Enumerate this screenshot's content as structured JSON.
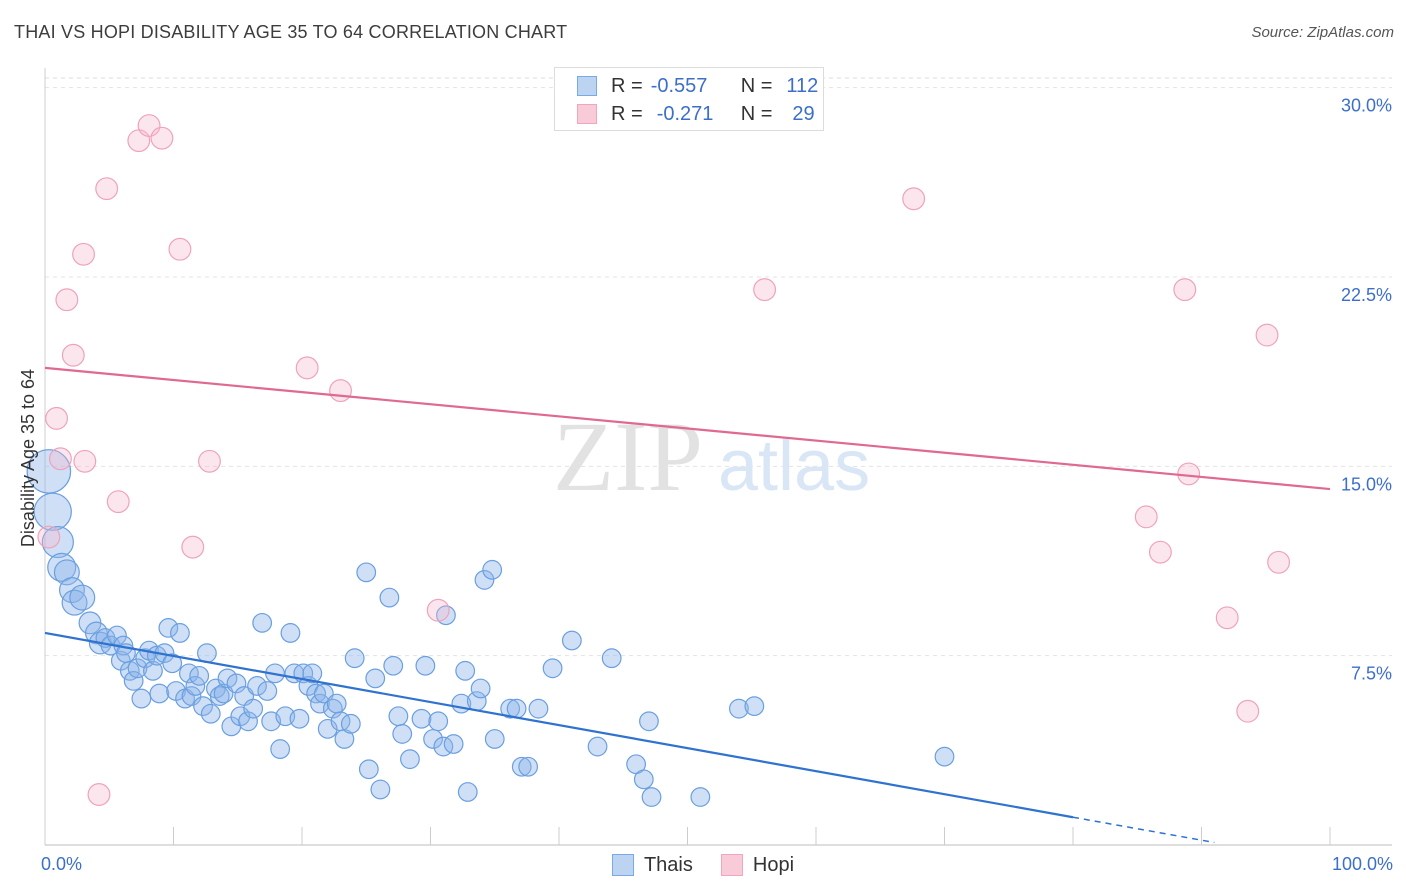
{
  "title": "THAI VS HOPI DISABILITY AGE 35 TO 64 CORRELATION CHART",
  "source": "Source: ZipAtlas.com",
  "watermark": {
    "zip": "ZIP",
    "atlas": "atlas"
  },
  "colors": {
    "thais": "#7aaae6",
    "thais_line": "#2f72cf",
    "hopi": "#f2a6bd",
    "hopi_line": "#e06990",
    "tick": "#3c6fc9"
  },
  "stats": [
    {
      "r_label": "R =",
      "r": "-0.557",
      "n_label": "N =",
      "n": "112"
    },
    {
      "r_label": "R =",
      "r": "-0.271",
      "n_label": "N =",
      "n": "29"
    }
  ],
  "chart_data": {
    "type": "scatter",
    "title": "THAI VS HOPI DISABILITY AGE 35 TO 64 CORRELATION CHART",
    "xlabel": "",
    "ylabel": "Disability Age 35 to 64",
    "xlim": [
      0,
      100
    ],
    "ylim": [
      0,
      30.7
    ],
    "x_tick_labels": [
      "0.0%",
      "100.0%"
    ],
    "y_ticks": [
      7.5,
      15.0,
      22.5,
      30.0
    ],
    "y_tick_labels": [
      "7.5%",
      "15.0%",
      "22.5%",
      "30.0%"
    ],
    "legend": [
      "Thais",
      "Hopi"
    ],
    "series": [
      {
        "name": "Thais",
        "trend": {
          "x0": 0,
          "y0": 8.4,
          "x1": 80,
          "y1": 1.1,
          "dash_to_x": 91,
          "dash_to_y": 0.1
        },
        "points": [
          [
            0.3,
            14.8,
            14
          ],
          [
            0.6,
            13.2,
            12
          ],
          [
            1.0,
            12.0,
            10
          ],
          [
            1.3,
            11.0,
            9
          ],
          [
            1.7,
            10.8,
            8
          ],
          [
            2.1,
            10.1,
            8
          ],
          [
            2.3,
            9.6,
            8
          ],
          [
            2.9,
            9.8,
            8
          ],
          [
            3.5,
            8.8,
            7
          ],
          [
            4.0,
            8.4,
            7
          ],
          [
            4.3,
            8.0,
            7
          ],
          [
            4.7,
            8.2,
            6
          ],
          [
            5.1,
            7.9,
            6
          ],
          [
            5.6,
            8.3,
            6
          ],
          [
            5.9,
            7.3,
            6
          ],
          [
            6.1,
            7.9,
            6
          ],
          [
            6.3,
            7.6,
            6
          ],
          [
            6.6,
            6.9,
            6
          ],
          [
            6.9,
            6.5,
            6
          ],
          [
            7.2,
            7.0,
            6
          ],
          [
            7.5,
            5.8,
            6
          ],
          [
            7.8,
            7.4,
            6
          ],
          [
            8.1,
            7.7,
            6
          ],
          [
            8.4,
            6.9,
            6
          ],
          [
            8.7,
            7.5,
            6
          ],
          [
            8.9,
            6.0,
            6
          ],
          [
            9.3,
            7.6,
            6
          ],
          [
            9.6,
            8.6,
            6
          ],
          [
            9.9,
            7.2,
            6
          ],
          [
            10.2,
            6.1,
            6
          ],
          [
            10.5,
            8.4,
            6
          ],
          [
            10.9,
            5.8,
            6
          ],
          [
            11.2,
            6.8,
            6
          ],
          [
            11.4,
            5.9,
            6
          ],
          [
            11.7,
            6.3,
            6
          ],
          [
            12.0,
            6.7,
            6
          ],
          [
            12.3,
            5.5,
            6
          ],
          [
            12.6,
            7.6,
            6
          ],
          [
            12.9,
            5.2,
            6
          ],
          [
            13.3,
            6.2,
            6
          ],
          [
            13.6,
            5.9,
            6
          ],
          [
            13.9,
            6.0,
            6
          ],
          [
            14.2,
            6.6,
            6
          ],
          [
            14.5,
            4.7,
            6
          ],
          [
            14.9,
            6.4,
            6
          ],
          [
            15.2,
            5.1,
            6
          ],
          [
            15.5,
            5.9,
            6
          ],
          [
            15.8,
            4.9,
            6
          ],
          [
            16.2,
            5.4,
            6
          ],
          [
            16.5,
            6.3,
            6
          ],
          [
            16.9,
            8.8,
            6
          ],
          [
            17.3,
            6.1,
            6
          ],
          [
            17.6,
            4.9,
            6
          ],
          [
            17.9,
            6.8,
            6
          ],
          [
            18.3,
            3.8,
            6
          ],
          [
            18.7,
            5.1,
            6
          ],
          [
            19.1,
            8.4,
            6
          ],
          [
            19.4,
            6.8,
            6
          ],
          [
            19.8,
            5.0,
            6
          ],
          [
            20.1,
            6.8,
            6
          ],
          [
            20.5,
            6.3,
            6
          ],
          [
            20.8,
            6.8,
            6
          ],
          [
            21.1,
            6.0,
            6
          ],
          [
            21.4,
            5.6,
            6
          ],
          [
            21.7,
            6.0,
            6
          ],
          [
            22.0,
            4.6,
            6
          ],
          [
            22.4,
            5.4,
            6
          ],
          [
            22.7,
            5.6,
            6
          ],
          [
            23.0,
            4.9,
            6
          ],
          [
            23.3,
            4.2,
            6
          ],
          [
            23.8,
            4.8,
            6
          ],
          [
            24.1,
            7.4,
            6
          ],
          [
            25.0,
            10.8,
            6
          ],
          [
            25.2,
            3.0,
            6
          ],
          [
            25.7,
            6.6,
            6
          ],
          [
            26.1,
            2.2,
            6
          ],
          [
            26.8,
            9.8,
            6
          ],
          [
            27.1,
            7.1,
            6
          ],
          [
            27.5,
            5.1,
            6
          ],
          [
            27.8,
            4.4,
            6
          ],
          [
            28.4,
            3.4,
            6
          ],
          [
            29.3,
            5.0,
            6
          ],
          [
            29.6,
            7.1,
            6
          ],
          [
            30.2,
            4.2,
            6
          ],
          [
            30.6,
            4.9,
            6
          ],
          [
            31.0,
            3.9,
            6
          ],
          [
            31.2,
            9.1,
            6
          ],
          [
            31.8,
            4.0,
            6
          ],
          [
            32.4,
            5.6,
            6
          ],
          [
            32.7,
            6.9,
            6
          ],
          [
            32.9,
            2.1,
            6
          ],
          [
            33.6,
            5.7,
            6
          ],
          [
            33.9,
            6.2,
            6
          ],
          [
            34.2,
            10.5,
            6
          ],
          [
            34.8,
            10.9,
            6
          ],
          [
            35.0,
            4.2,
            6
          ],
          [
            36.2,
            5.4,
            6
          ],
          [
            36.7,
            5.4,
            6
          ],
          [
            37.1,
            3.1,
            6
          ],
          [
            37.6,
            3.1,
            6
          ],
          [
            38.4,
            5.4,
            6
          ],
          [
            39.5,
            7.0,
            6
          ],
          [
            41.0,
            8.1,
            6
          ],
          [
            43.0,
            3.9,
            6
          ],
          [
            44.1,
            7.4,
            6
          ],
          [
            46.0,
            3.2,
            6
          ],
          [
            46.6,
            2.6,
            6
          ],
          [
            47.0,
            4.9,
            6
          ],
          [
            47.2,
            1.9,
            6
          ],
          [
            51.0,
            1.9,
            6
          ],
          [
            54.0,
            5.4,
            6
          ],
          [
            55.2,
            5.5,
            6
          ],
          [
            70.0,
            3.5,
            6
          ]
        ]
      },
      {
        "name": "Hopi",
        "trend": {
          "x0": 0,
          "y0": 18.9,
          "x1": 100,
          "y1": 14.1
        },
        "points": [
          [
            0.3,
            12.2,
            7
          ],
          [
            0.9,
            16.9,
            7
          ],
          [
            1.2,
            15.3,
            7
          ],
          [
            1.7,
            21.6,
            7
          ],
          [
            2.2,
            19.4,
            7
          ],
          [
            3.0,
            23.4,
            7
          ],
          [
            3.1,
            15.2,
            7
          ],
          [
            4.2,
            2.0,
            7
          ],
          [
            4.8,
            26.0,
            7
          ],
          [
            5.7,
            13.6,
            7
          ],
          [
            7.3,
            27.9,
            7
          ],
          [
            8.1,
            28.5,
            7
          ],
          [
            9.1,
            28.0,
            7
          ],
          [
            10.5,
            23.6,
            7
          ],
          [
            11.5,
            11.8,
            7
          ],
          [
            12.8,
            15.2,
            7
          ],
          [
            20.4,
            18.9,
            7
          ],
          [
            23.0,
            18.0,
            7
          ],
          [
            30.6,
            9.3,
            7
          ],
          [
            56.0,
            22.0,
            7
          ],
          [
            67.6,
            25.6,
            7
          ],
          [
            85.7,
            13.0,
            7
          ],
          [
            86.8,
            11.6,
            7
          ],
          [
            88.7,
            22.0,
            7
          ],
          [
            89.0,
            14.7,
            7
          ],
          [
            92.0,
            9.0,
            7
          ],
          [
            93.6,
            5.3,
            7
          ],
          [
            95.1,
            20.2,
            7
          ],
          [
            96.0,
            11.2,
            7
          ]
        ]
      }
    ]
  }
}
